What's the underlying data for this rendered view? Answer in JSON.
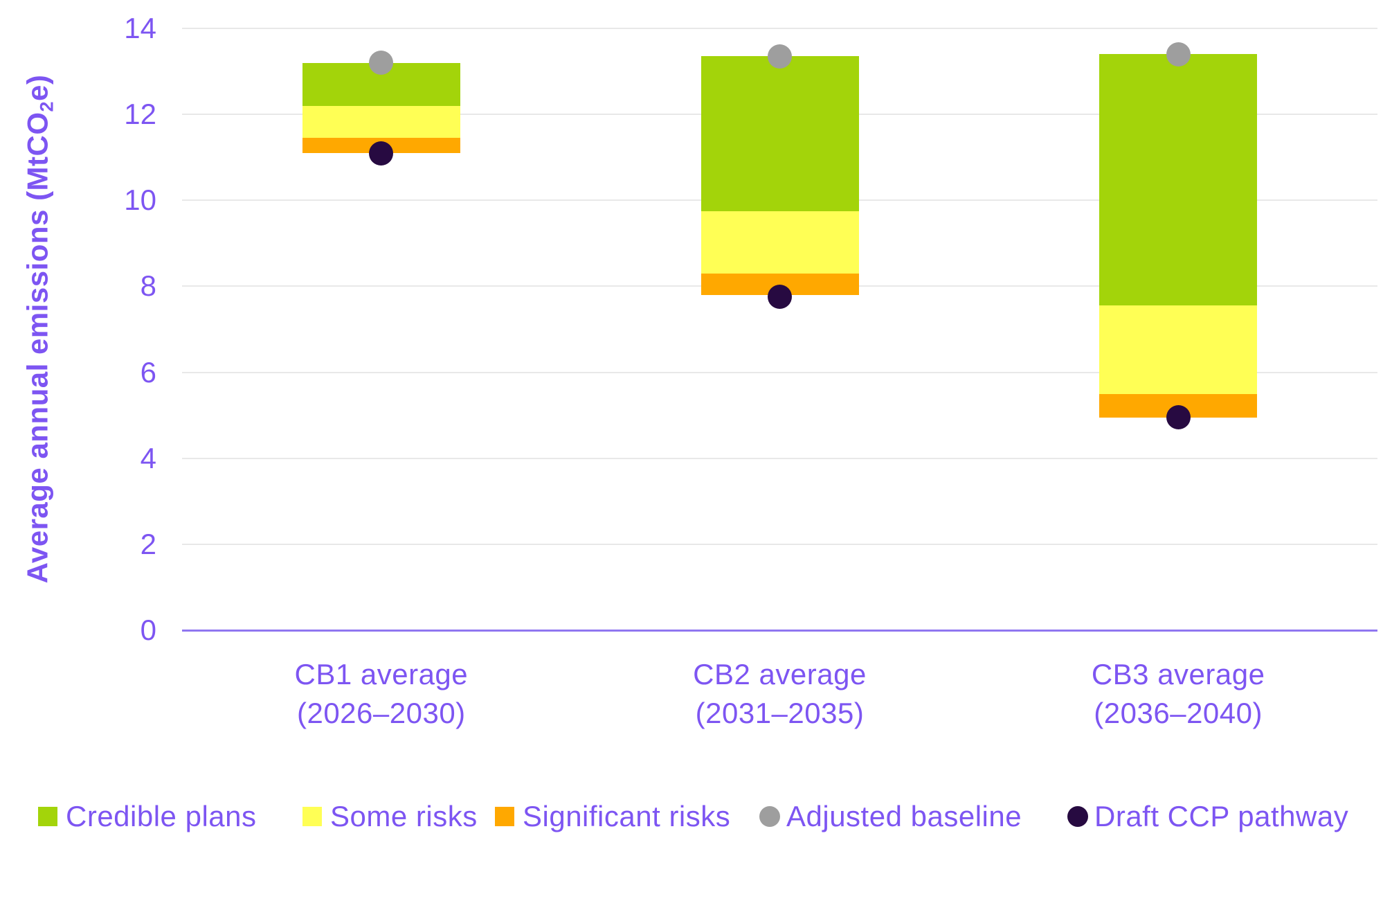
{
  "chart_data": {
    "type": "bar",
    "subtype": "stacked-floating-range-with-point-markers",
    "title": "",
    "xlabel": "",
    "ylabel": "Average annual emissions (MtCO2e)",
    "ylabel_parts": {
      "prefix": "Average annual emissions (MtCO",
      "sub": "2",
      "suffix": "e)"
    },
    "ylim": [
      0,
      14
    ],
    "yticks": [
      0,
      2,
      4,
      6,
      8,
      10,
      12,
      14
    ],
    "grid": "horizontal",
    "legend_position": "bottom",
    "categories": [
      {
        "line1": "CB1 average",
        "line2": "(2026–2030)"
      },
      {
        "line1": "CB2 average",
        "line2": "(2031–2035)"
      },
      {
        "line1": "CB3 average",
        "line2": "(2036–2040)"
      }
    ],
    "series": [
      {
        "name": "Significant risks",
        "key": "significant",
        "ranges": [
          [
            11.1,
            11.45
          ],
          [
            7.8,
            8.3
          ],
          [
            4.95,
            5.5
          ]
        ]
      },
      {
        "name": "Some risks",
        "key": "some",
        "ranges": [
          [
            11.45,
            12.2
          ],
          [
            8.3,
            9.75
          ],
          [
            5.5,
            7.55
          ]
        ]
      },
      {
        "name": "Credible plans",
        "key": "credible",
        "ranges": [
          [
            12.2,
            13.2
          ],
          [
            9.75,
            13.35
          ],
          [
            7.55,
            13.4
          ]
        ]
      }
    ],
    "markers": [
      {
        "name": "Adjusted baseline",
        "key": "adjusted-baseline",
        "values": [
          13.2,
          13.35,
          13.4
        ],
        "color": "#9E9E9E"
      },
      {
        "name": "Draft CCP pathway",
        "key": "draft-ccp",
        "values": [
          11.1,
          7.75,
          4.95
        ],
        "color": "#270A41"
      }
    ]
  },
  "legend": {
    "items": [
      {
        "label": "Credible plans",
        "color": "#A3D40A",
        "shape": "square"
      },
      {
        "label": "Some risks",
        "color": "#FFFF55",
        "shape": "square"
      },
      {
        "label": "Significant risks",
        "color": "#FFA800",
        "shape": "square"
      },
      {
        "label": "Adjusted baseline",
        "color": "#9E9E9E",
        "shape": "circle"
      },
      {
        "label": "Draft CCP pathway",
        "color": "#270A41",
        "shape": "circle"
      }
    ]
  },
  "colors": {
    "text": "#7D55F2",
    "grid": "#E8E8E8",
    "zero_line": "#8F76F0",
    "credible": "#A3D40A",
    "some": "#FFFF55",
    "significant": "#FFA800",
    "adjusted_baseline": "#9E9E9E",
    "draft_ccp": "#270A41"
  }
}
